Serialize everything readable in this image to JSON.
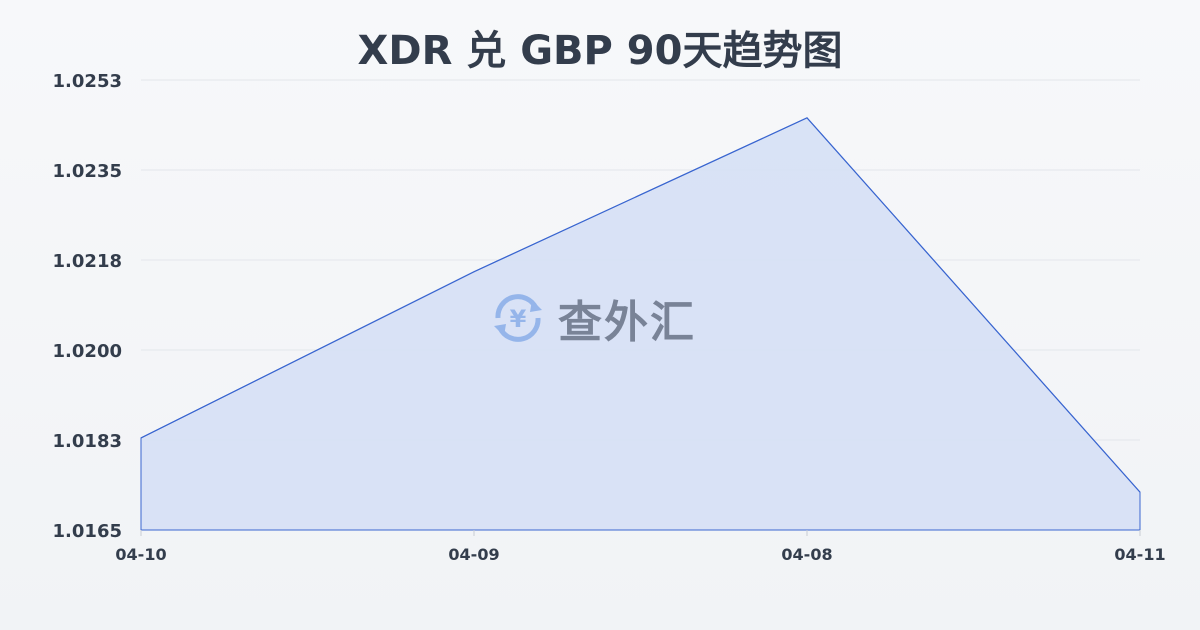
{
  "chart_data": {
    "type": "area",
    "title": "XDR 兑 GBP 90天趋势图",
    "categories": [
      "04-10",
      "04-09",
      "04-08",
      "04-11"
    ],
    "values": [
      1.0183,
      1.02155,
      1.02456,
      1.01724
    ],
    "yticks": [
      "1.0253",
      "1.0235",
      "1.0218",
      "1.0200",
      "1.0183",
      "1.0165"
    ],
    "ylim": [
      1.0165,
      1.0253
    ],
    "grid": true,
    "line_color": "#3a66d0",
    "fill_color": "#d6e0f5"
  },
  "watermark": {
    "text": "查外汇",
    "icon": "yen-exchange-icon"
  }
}
